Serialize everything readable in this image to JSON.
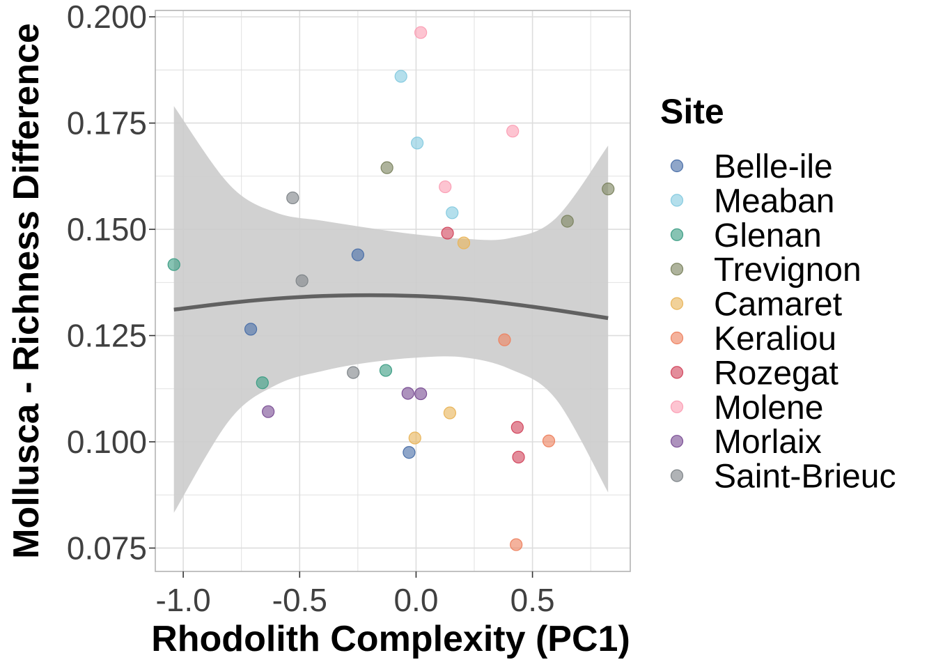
{
  "chart_data": {
    "type": "scatter",
    "xlabel": "Rhodolith Complexity (PC1)",
    "ylabel": "Mollusca - Richness Difference",
    "xlim": [
      -1.12,
      0.92
    ],
    "ylim": [
      0.0695,
      0.2015
    ],
    "x_ticks": [
      -1.0,
      -0.5,
      0.0,
      0.5
    ],
    "x_tick_labels": [
      "-1.0",
      "-0.5",
      "0.0",
      "0.5"
    ],
    "y_ticks": [
      0.075,
      0.1,
      0.125,
      0.15,
      0.175,
      0.2
    ],
    "y_tick_labels": [
      "0.075",
      "0.100",
      "0.125",
      "0.150",
      "0.175",
      "0.200"
    ],
    "grid": true,
    "legend": {
      "title": "Site",
      "placement": "right",
      "entries": [
        "Belle-ile",
        "Meaban",
        "Glenan",
        "Trevignon",
        "Camaret",
        "Keraliou",
        "Rozegat",
        "Molene",
        "Morlaix",
        "Saint-Brieuc"
      ]
    },
    "colors": {
      "Belle-ile": "#4a6fa8",
      "Meaban": "#86cbe0",
      "Glenan": "#3d9e85",
      "Trevignon": "#7c8460",
      "Camaret": "#e9b55a",
      "Keraliou": "#ee8260",
      "Rozegat": "#d2475e",
      "Molene": "#fb9fb5",
      "Morlaix": "#7b4f95",
      "Saint-Brieuc": "#7f8589",
      "ribbon": "#cccccc",
      "smooth": "#616161",
      "grid": "#dddddd",
      "panel_border": "#b3b3b3"
    },
    "series": [
      {
        "name": "Belle-ile",
        "points": [
          [
            -0.25,
            0.144
          ],
          [
            -0.71,
            0.1265
          ],
          [
            -0.03,
            0.0975
          ]
        ]
      },
      {
        "name": "Meaban",
        "points": [
          [
            -0.065,
            0.186
          ],
          [
            0.005,
            0.1703
          ],
          [
            0.155,
            0.1539
          ]
        ]
      },
      {
        "name": "Glenan",
        "points": [
          [
            -1.04,
            0.1417
          ],
          [
            -0.66,
            0.1139
          ],
          [
            -0.13,
            0.1168
          ]
        ]
      },
      {
        "name": "Trevignon",
        "points": [
          [
            -0.125,
            0.1645
          ],
          [
            0.65,
            0.1519
          ],
          [
            0.825,
            0.1595
          ]
        ]
      },
      {
        "name": "Camaret",
        "points": [
          [
            0.205,
            0.1468
          ],
          [
            0.145,
            0.1068
          ],
          [
            -0.005,
            0.1009
          ]
        ]
      },
      {
        "name": "Keraliou",
        "points": [
          [
            0.38,
            0.124
          ],
          [
            0.57,
            0.1002
          ],
          [
            0.43,
            0.0758
          ]
        ]
      },
      {
        "name": "Rozegat",
        "points": [
          [
            0.135,
            0.1491
          ],
          [
            0.435,
            0.1034
          ],
          [
            0.44,
            0.0964
          ]
        ]
      },
      {
        "name": "Molene",
        "points": [
          [
            0.02,
            0.1963
          ],
          [
            0.125,
            0.16
          ],
          [
            0.415,
            0.1731
          ]
        ]
      },
      {
        "name": "Morlaix",
        "points": [
          [
            -0.035,
            0.1114
          ],
          [
            0.02,
            0.1113
          ],
          [
            -0.635,
            0.1071
          ]
        ]
      },
      {
        "name": "Saint-Brieuc",
        "points": [
          [
            -0.53,
            0.1574
          ],
          [
            -0.49,
            0.1379
          ],
          [
            -0.27,
            0.1163
          ]
        ]
      }
    ],
    "smooth": {
      "x": [
        -1.04,
        -0.8,
        -0.6,
        -0.4,
        -0.2,
        0.0,
        0.2,
        0.4,
        0.6,
        0.825
      ],
      "fit": [
        0.1311,
        0.1327,
        0.1337,
        0.1343,
        0.1345,
        0.1343,
        0.1337,
        0.1325,
        0.131,
        0.1291
      ],
      "lower": [
        0.0833,
        0.1052,
        0.1134,
        0.1167,
        0.1187,
        0.1198,
        0.1199,
        0.1172,
        0.1101,
        0.0881
      ],
      "upper": [
        0.179,
        0.1604,
        0.1539,
        0.152,
        0.1503,
        0.1488,
        0.1478,
        0.1479,
        0.1526,
        0.1697
      ]
    }
  }
}
